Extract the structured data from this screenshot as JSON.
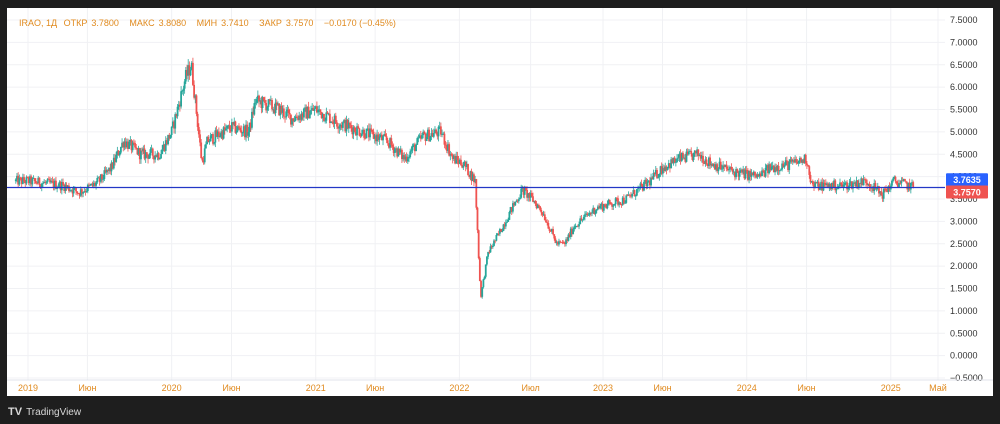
{
  "header": {
    "symbol": "IRAO, 1Д",
    "open_label": "ОТКР",
    "open_value": "3.7800",
    "high_label": "МАКС",
    "high_value": "3.8080",
    "low_label": "МИН",
    "low_value": "3.7410",
    "close_label": "ЗАКР",
    "close_value": "3.7570",
    "change": "−0.0170 (−0.45%)"
  },
  "branding": {
    "logo_mark": "TV",
    "logo_text": "TradingView"
  },
  "colors": {
    "up": "#26a69a",
    "down": "#ef5350",
    "hline": "#2337c6",
    "blue_tag": "#2962ff",
    "red_tag": "#ef5350",
    "accent": "#e08a1e"
  },
  "chart_data": {
    "type": "candlestick",
    "title": "IRAO, 1Д",
    "interval": "1Д",
    "y_axis": {
      "ticks": [
        "7.5000",
        "7.0000",
        "6.5000",
        "6.0000",
        "5.5000",
        "5.0000",
        "4.5000",
        "4.0000",
        "3.5000",
        "3.0000",
        "2.5000",
        "2.0000",
        "1.5000",
        "1.0000",
        "0.5000",
        "0.0000",
        "−0.5000"
      ],
      "ylim": [
        -0.5,
        7.5
      ]
    },
    "x_axis": {
      "ticks": [
        "2019",
        "Июн",
        "2020",
        "Июн",
        "2021",
        "Июн",
        "2022",
        "Июл",
        "2023",
        "Июн",
        "2024",
        "Июн",
        "2025",
        "Май"
      ],
      "tick_dates": [
        "2019-01-01",
        "2019-06-01",
        "2020-01-01",
        "2020-06-01",
        "2021-01-01",
        "2021-06-01",
        "2022-01-01",
        "2022-07-01",
        "2023-01-01",
        "2023-06-01",
        "2024-01-01",
        "2024-06-01",
        "2025-01-01",
        "2025-05-01"
      ]
    },
    "price_path": {
      "dates": [
        "2018-12-01",
        "2019-01-01",
        "2019-02-15",
        "2019-04-01",
        "2019-05-10",
        "2019-06-15",
        "2019-07-01",
        "2019-08-01",
        "2019-09-01",
        "2019-10-15",
        "2019-12-01",
        "2020-01-01",
        "2020-02-05",
        "2020-02-20",
        "2020-03-18",
        "2020-04-01",
        "2020-06-01",
        "2020-07-15",
        "2020-08-01",
        "2020-10-01",
        "2020-11-01",
        "2021-01-01",
        "2021-03-01",
        "2021-05-01",
        "2021-07-01",
        "2021-08-15",
        "2021-10-01",
        "2021-11-15",
        "2021-12-15",
        "2022-01-10",
        "2022-02-10",
        "2022-02-24",
        "2022-03-15",
        "2022-04-10",
        "2022-05-15",
        "2022-06-10",
        "2022-07-05",
        "2022-08-01",
        "2022-09-05",
        "2022-09-26",
        "2022-10-20",
        "2022-12-15",
        "2023-03-01",
        "2023-05-01",
        "2023-06-01",
        "2023-07-15",
        "2023-09-01",
        "2023-10-01",
        "2023-12-01",
        "2024-02-01",
        "2024-03-01",
        "2024-05-01",
        "2024-06-01",
        "2024-06-15",
        "2024-09-01",
        "2024-11-01",
        "2024-12-10",
        "2025-01-10",
        "2025-02-15",
        "2025-03-01"
      ],
      "closes": [
        3.9,
        3.9,
        3.85,
        3.8,
        3.65,
        3.8,
        3.9,
        4.2,
        4.8,
        4.5,
        4.5,
        5.0,
        6.2,
        6.5,
        4.3,
        4.8,
        5.1,
        5.0,
        5.7,
        5.5,
        5.3,
        5.5,
        5.2,
        5.0,
        4.8,
        4.4,
        4.9,
        5.0,
        4.4,
        4.3,
        3.9,
        1.3,
        2.3,
        2.7,
        3.3,
        3.7,
        3.5,
        3.2,
        2.5,
        2.5,
        2.9,
        3.3,
        3.5,
        3.9,
        4.2,
        4.4,
        4.5,
        4.3,
        4.1,
        4.0,
        4.2,
        4.3,
        4.4,
        3.8,
        3.8,
        3.9,
        3.6,
        3.9,
        3.8,
        3.757
      ]
    },
    "horizontal_line": 3.757,
    "last_price_labels": [
      "3.7635",
      "3.7570"
    ],
    "grid": true
  }
}
